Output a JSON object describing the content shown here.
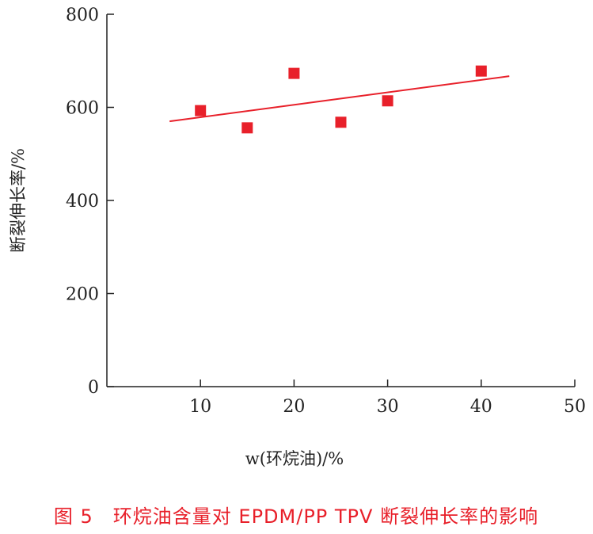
{
  "chart_data": {
    "type": "scatter",
    "title": "",
    "xlabel": "w(环烷油)/%",
    "ylabel": "断裂伸长率/%",
    "xlim": [
      0,
      50
    ],
    "ylim": [
      0,
      800
    ],
    "x_ticks": [
      "10",
      "20",
      "30",
      "40",
      "50"
    ],
    "y_ticks": [
      "0",
      "200",
      "400",
      "600",
      "800"
    ],
    "series": [
      {
        "points": [
          {
            "x": 10,
            "y": 593
          },
          {
            "x": 15,
            "y": 556
          },
          {
            "x": 20,
            "y": 673
          },
          {
            "x": 25,
            "y": 568
          },
          {
            "x": 30,
            "y": 614
          },
          {
            "x": 40,
            "y": 678
          }
        ]
      }
    ],
    "trendline": {
      "x": [
        6.7,
        43
      ],
      "y": [
        570,
        667
      ]
    },
    "colors": {
      "marker": "#e8202a",
      "trendline": "#e8202a",
      "axis": "#222222"
    },
    "grid": false,
    "legend": "none"
  },
  "caption": "图 5　环烷油含量对 EPDM/PP TPV 断裂伸长率的影响"
}
